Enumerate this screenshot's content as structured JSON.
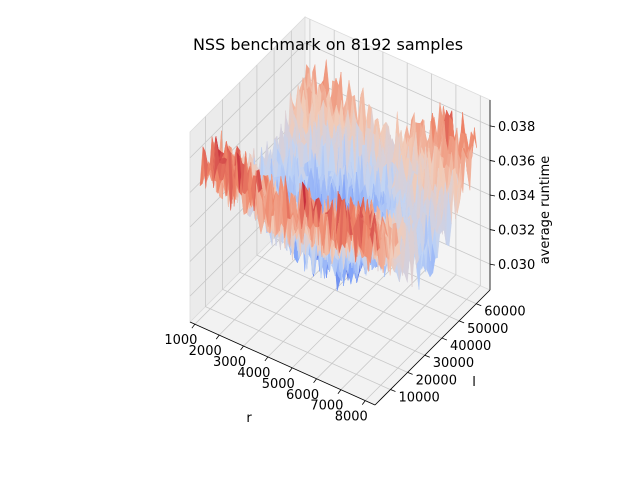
{
  "chart_data": {
    "type": "surface",
    "title": "NSS benchmark on 8192 samples",
    "xlabel": "r",
    "ylabel": "l",
    "zlabel": "average runtime",
    "x_ticks": [
      1000,
      2000,
      3000,
      4000,
      5000,
      6000,
      7000,
      8000
    ],
    "y_ticks": [
      10000,
      20000,
      30000,
      40000,
      50000,
      60000
    ],
    "z_ticks": [
      0.03,
      0.032,
      0.034,
      0.036,
      0.038
    ],
    "x_tick_labels": [
      "1000",
      "2000",
      "3000",
      "4000",
      "5000",
      "6000",
      "7000",
      "8000"
    ],
    "y_tick_labels": [
      "10000",
      "20000",
      "30000",
      "40000",
      "50000",
      "60000"
    ],
    "z_tick_labels": [
      "0.030",
      "0.032",
      "0.034",
      "0.036",
      "0.038"
    ],
    "xlim": [
      800,
      8400
    ],
    "ylim": [
      1000,
      68000
    ],
    "zlim": [
      0.0285,
      0.0395
    ],
    "colormap": "coolwarm",
    "colormap_stops": [
      "#3b4cc0",
      "#7b9ff9",
      "#c0d4f5",
      "#f2cbb7",
      "#ee8468",
      "#b40426"
    ],
    "grid": true,
    "surface": {
      "x": [
        1000,
        2000,
        3000,
        4000,
        5000,
        6000,
        7000,
        8000
      ],
      "y": [
        4000,
        10000,
        20000,
        30000,
        40000,
        50000,
        60000,
        66000
      ],
      "z": [
        [
          0.0378,
          0.0376,
          0.0372,
          0.037,
          0.0371,
          0.0374,
          0.0376,
          0.0372
        ],
        [
          0.0372,
          0.0369,
          0.0363,
          0.0358,
          0.036,
          0.0366,
          0.0371,
          0.0366
        ],
        [
          0.0356,
          0.035,
          0.034,
          0.0336,
          0.0338,
          0.0348,
          0.0358,
          0.0352
        ],
        [
          0.0341,
          0.0334,
          0.0324,
          0.0318,
          0.032,
          0.0332,
          0.0344,
          0.0338
        ],
        [
          0.0334,
          0.0327,
          0.0316,
          0.031,
          0.0312,
          0.0325,
          0.0337,
          0.0331
        ],
        [
          0.034,
          0.0334,
          0.0325,
          0.0319,
          0.0322,
          0.0333,
          0.0344,
          0.0339
        ],
        [
          0.0356,
          0.0352,
          0.0344,
          0.034,
          0.0343,
          0.0352,
          0.0362,
          0.0356
        ],
        [
          0.0366,
          0.0362,
          0.0356,
          0.0352,
          0.0355,
          0.0363,
          0.0373,
          0.0367
        ]
      ]
    }
  }
}
